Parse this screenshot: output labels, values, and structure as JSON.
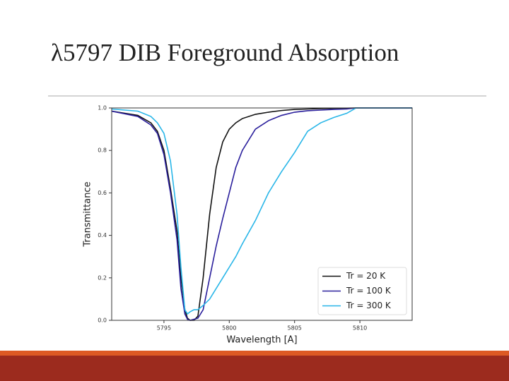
{
  "slide_title": "λ5797 DIB Foreground Absorption",
  "chart_data": {
    "type": "line",
    "x_label": "Wavelength [A]",
    "y_label": "Transmittance",
    "x": [
      5791,
      5793,
      5794,
      5794.5,
      5795,
      5795.5,
      5796,
      5796.3,
      5796.6,
      5796.8,
      5797,
      5797.3,
      5797.6,
      5798,
      5798.5,
      5799,
      5799.5,
      5800,
      5800.5,
      5801,
      5802,
      5803,
      5804,
      5805,
      5806,
      5807,
      5808,
      5809,
      5809.7,
      5811,
      5814
    ],
    "series": [
      {
        "name": "Tr = 20 K",
        "color": "#111111",
        "values": [
          0.985,
          0.965,
          0.93,
          0.89,
          0.8,
          0.62,
          0.42,
          0.2,
          0.05,
          0.01,
          0.0,
          0.0,
          0.02,
          0.2,
          0.5,
          0.72,
          0.84,
          0.9,
          0.93,
          0.95,
          0.97,
          0.98,
          0.988,
          0.993,
          0.995,
          0.997,
          0.998,
          0.999,
          1.0,
          1.0,
          1.0
        ]
      },
      {
        "name": "Tr = 100 K",
        "color": "#2a1f9c",
        "values": [
          0.985,
          0.96,
          0.92,
          0.88,
          0.78,
          0.6,
          0.38,
          0.15,
          0.03,
          0.005,
          0.0,
          0.005,
          0.01,
          0.05,
          0.2,
          0.35,
          0.48,
          0.6,
          0.72,
          0.8,
          0.9,
          0.94,
          0.965,
          0.98,
          0.987,
          0.99,
          0.993,
          0.995,
          1.0,
          1.0,
          1.0
        ]
      },
      {
        "name": "Tr = 300 K",
        "color": "#29b6e8",
        "values": [
          0.995,
          0.985,
          0.96,
          0.93,
          0.88,
          0.75,
          0.5,
          0.25,
          0.05,
          0.03,
          0.04,
          0.05,
          0.05,
          0.07,
          0.1,
          0.15,
          0.2,
          0.25,
          0.3,
          0.36,
          0.47,
          0.6,
          0.7,
          0.79,
          0.89,
          0.93,
          0.955,
          0.975,
          1.0,
          1.0,
          1.0
        ]
      }
    ],
    "xlim": [
      5791,
      5814
    ],
    "xticks": [
      5795,
      5800,
      5805,
      5810
    ],
    "ylim": [
      0,
      1
    ],
    "yticks": [
      {
        "value": 0,
        "label": "0.0"
      },
      0.2,
      0.4,
      0.6,
      0.8,
      {
        "value": 1,
        "label": "1.0"
      }
    ],
    "legend": "lower right"
  }
}
